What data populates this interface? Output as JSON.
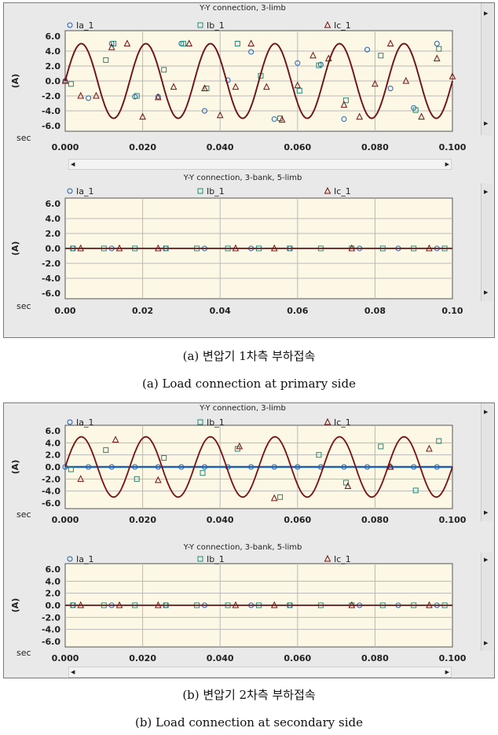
{
  "figures": [
    {
      "caption_ko": "(a) 변압기 1차측 부하접속",
      "caption_en": "(a) Load connection at primary side",
      "panels": [
        {
          "title": "Y-Y connection, 3-limb",
          "ylabel": "(A)",
          "xlabel": "sec",
          "yticks": [
            "6.0",
            "4.0",
            "2.0",
            "0.0",
            "-2.0",
            "-4.0",
            "-6.0"
          ],
          "xticks": [
            "0.000",
            "0.020",
            "0.040",
            "0.060",
            "0.080",
            "0.100"
          ],
          "legend": [
            "Ia_1",
            "Ib_1",
            "Ic_1"
          ]
        },
        {
          "title": "Y-Y connection, 3-bank, 5-limb",
          "ylabel": "(A)",
          "xlabel": "sec",
          "yticks": [
            "6.0",
            "4.0",
            "2.0",
            "0.0",
            "-2.0",
            "-4.0",
            "-6.0"
          ],
          "xticks": [
            "0.00",
            "0.02",
            "0.04",
            "0.06",
            "0.08",
            "0.10"
          ],
          "legend": [
            "Ia_1",
            "Ib_1",
            "Ic_1"
          ]
        }
      ]
    },
    {
      "caption_ko": "(b) 변압기 2차측 부하접속",
      "caption_en": "(b) Load connection at secondary side",
      "panels": [
        {
          "title": "Y-Y connection, 3-limb",
          "ylabel": "(A)",
          "xlabel": "sec",
          "yticks": [
            "6.0",
            "4.0",
            "2.0",
            "0.0",
            "-2.0",
            "-4.0",
            "-6.0"
          ],
          "xticks": [
            "0.000",
            "0.020",
            "0.040",
            "0.060",
            "0.080",
            "0.100"
          ],
          "legend": [
            "Ia_1",
            "Ib_1",
            "Ic_1"
          ]
        },
        {
          "title": "Y-Y connection, 3-bank, 5-limb",
          "ylabel": "(A)",
          "xlabel": "sec",
          "yticks": [
            "6.0",
            "4.0",
            "2.0",
            "0.0",
            "-2.0",
            "-4.0",
            "-6.0"
          ],
          "xticks": [
            "0.000",
            "0.020",
            "0.040",
            "0.060",
            "0.080",
            "0.100"
          ],
          "legend": [
            "Ia_1",
            "Ib_1",
            "Ic_1"
          ]
        }
      ]
    }
  ],
  "chart_data": [
    {
      "type": "line",
      "title": "Y-Y connection, 3-limb",
      "xlabel": "sec",
      "ylabel": "(A)",
      "xlim": [
        0,
        0.1
      ],
      "ylim": [
        -6,
        6
      ],
      "grid": true,
      "legend": "top",
      "series": [
        {
          "name": "Ia_1",
          "color": "#2060b0",
          "marker": "circle",
          "amplitude": 5.0,
          "frequency_hz": 60,
          "phase_deg": -100,
          "x": [
            0.0,
            0.006,
            0.012,
            0.018,
            0.024,
            0.03,
            0.036,
            0.042,
            0.048,
            0.054,
            0.06,
            0.066,
            0.072,
            0.078,
            0.084,
            0.09,
            0.096
          ],
          "y": [
            0.0,
            -2.3,
            5.0,
            -2.1,
            -2.1,
            5.0,
            -4.0,
            0.1,
            3.9,
            -5.1,
            2.4,
            2.2,
            -5.1,
            4.2,
            -1.0,
            -3.6,
            5.0
          ]
        },
        {
          "name": "Ib_1",
          "color": "#1f8a78",
          "marker": "square",
          "x": [
            0.0015,
            0.0105,
            0.0125,
            0.0185,
            0.0255,
            0.0305,
            0.0365,
            0.0445,
            0.0505,
            0.0555,
            0.0605,
            0.0655,
            0.0725,
            0.0815,
            0.0905,
            0.0965
          ],
          "y": [
            -0.4,
            2.8,
            5.0,
            -2.0,
            1.5,
            5.0,
            -1.0,
            5.0,
            0.7,
            -5.0,
            -1.3,
            2.1,
            -2.6,
            3.4,
            -3.9,
            4.3
          ]
        },
        {
          "name": "Ic_1",
          "color": "#7a1010",
          "marker": "triangle",
          "amplitude": 5.0,
          "frequency_hz": 60,
          "phase_deg": -100,
          "x": [
            0.0,
            0.004,
            0.008,
            0.012,
            0.016,
            0.02,
            0.024,
            0.028,
            0.032,
            0.036,
            0.04,
            0.044,
            0.048,
            0.052,
            0.056,
            0.06,
            0.064,
            0.068,
            0.072,
            0.076,
            0.08,
            0.084,
            0.088,
            0.092,
            0.096,
            0.1
          ],
          "y": [
            0.0,
            -2.0,
            -2.0,
            4.5,
            5.0,
            -4.8,
            -2.2,
            -0.8,
            5.0,
            -1.0,
            -4.6,
            -0.8,
            5.0,
            -0.8,
            -5.2,
            -0.6,
            3.4,
            3.0,
            -3.2,
            -4.8,
            -0.4,
            5.0,
            0.0,
            -4.8,
            3.0,
            0.6
          ]
        }
      ]
    },
    {
      "type": "line",
      "title": "Y-Y connection, 3-bank, 5-limb",
      "xlabel": "sec",
      "ylabel": "(A)",
      "xlim": [
        0,
        0.1
      ],
      "ylim": [
        -6,
        6
      ],
      "grid": true,
      "legend": "top",
      "series": [
        {
          "name": "Ia_1",
          "color": "#2060b0",
          "marker": "circle",
          "x": [
            0.002,
            0.012,
            0.026,
            0.036,
            0.048,
            0.058,
            0.076,
            0.086,
            0.096
          ],
          "y": [
            0,
            0,
            0,
            0,
            0,
            0,
            0,
            0,
            0
          ]
        },
        {
          "name": "Ib_1",
          "color": "#1f8a78",
          "marker": "square",
          "x": [
            0.002,
            0.01,
            0.018,
            0.026,
            0.034,
            0.042,
            0.05,
            0.058,
            0.066,
            0.074,
            0.082,
            0.09,
            0.098
          ],
          "y": [
            0,
            0,
            0,
            0,
            0,
            0,
            0,
            0,
            0,
            0,
            0,
            0,
            0
          ]
        },
        {
          "name": "Ic_1",
          "color": "#7a1010",
          "marker": "triangle",
          "x": [
            0.004,
            0.014,
            0.024,
            0.044,
            0.054,
            0.074,
            0.094
          ],
          "y": [
            0,
            0,
            0,
            0,
            0,
            0,
            0
          ]
        }
      ]
    },
    {
      "type": "line",
      "title": "Y-Y connection, 3-limb",
      "xlabel": "sec",
      "ylabel": "(A)",
      "xlim": [
        0,
        0.1
      ],
      "ylim": [
        -6,
        6
      ],
      "grid": true,
      "legend": "top",
      "series": [
        {
          "name": "Ia_1",
          "color": "#2060b0",
          "marker": "circle",
          "x": [
            0.0,
            0.006,
            0.012,
            0.018,
            0.024,
            0.03,
            0.036,
            0.042,
            0.048,
            0.054,
            0.06,
            0.066,
            0.072,
            0.078,
            0.084,
            0.09,
            0.096
          ],
          "y": [
            0,
            0,
            0,
            0,
            0,
            0,
            0,
            0,
            0,
            0,
            0,
            0,
            0,
            0,
            0,
            0,
            0
          ]
        },
        {
          "name": "Ib_1",
          "color": "#1f8a78",
          "marker": "square",
          "x": [
            0.0015,
            0.0105,
            0.0185,
            0.0255,
            0.0355,
            0.0445,
            0.0555,
            0.0655,
            0.0725,
            0.0815,
            0.0905,
            0.0965
          ],
          "y": [
            -0.4,
            2.8,
            -2.0,
            1.5,
            -1.0,
            3.0,
            -5.0,
            2.0,
            -2.6,
            3.4,
            -3.9,
            4.3
          ]
        },
        {
          "name": "Ic_1",
          "color": "#7a1010",
          "marker": "triangle",
          "amplitude": 5.0,
          "frequency_hz": 60,
          "phase_deg": -100,
          "x": [
            0.004,
            0.013,
            0.024,
            0.045,
            0.054,
            0.073,
            0.084,
            0.094
          ],
          "y": [
            -2.0,
            4.5,
            -2.2,
            3.4,
            -5.2,
            -3.2,
            0.0,
            3.0
          ]
        }
      ]
    },
    {
      "type": "line",
      "title": "Y-Y connection, 3-bank, 5-limb",
      "xlabel": "sec",
      "ylabel": "(A)",
      "xlim": [
        0,
        0.1
      ],
      "ylim": [
        -6,
        6
      ],
      "grid": true,
      "legend": "top",
      "series": [
        {
          "name": "Ia_1",
          "color": "#2060b0",
          "marker": "circle",
          "x": [
            0.002,
            0.012,
            0.026,
            0.036,
            0.048,
            0.058,
            0.076,
            0.086,
            0.096
          ],
          "y": [
            0,
            0,
            0,
            0,
            0,
            0,
            0,
            0,
            0
          ]
        },
        {
          "name": "Ib_1",
          "color": "#1f8a78",
          "marker": "square",
          "x": [
            0.002,
            0.01,
            0.018,
            0.026,
            0.034,
            0.042,
            0.05,
            0.058,
            0.066,
            0.074,
            0.082,
            0.09,
            0.098
          ],
          "y": [
            0,
            0,
            0,
            0,
            0,
            0,
            0,
            0,
            0,
            0,
            0,
            0,
            0
          ]
        },
        {
          "name": "Ic_1",
          "color": "#7a1010",
          "marker": "triangle",
          "x": [
            0.004,
            0.014,
            0.024,
            0.044,
            0.054,
            0.074,
            0.094
          ],
          "y": [
            0,
            0,
            0,
            0,
            0,
            0,
            0
          ]
        }
      ]
    }
  ],
  "colors": {
    "plot_bg": "#fdf8e6",
    "grid": "#b8b8b8",
    "ia": "#2060b0",
    "ib": "#1f8a78",
    "ic": "#7a1010",
    "axis": "#555555"
  }
}
